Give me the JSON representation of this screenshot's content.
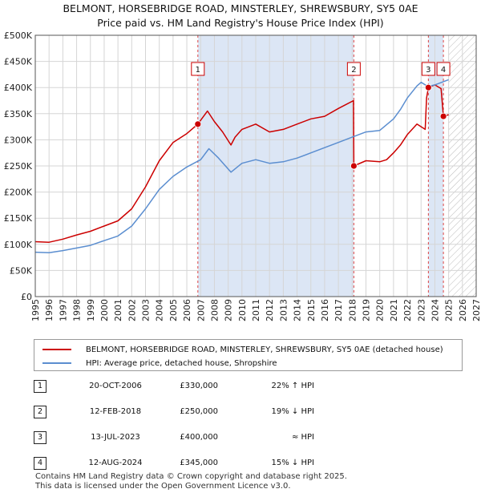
{
  "title_line1": "BELMONT, HORSEBRIDGE ROAD, MINSTERLEY, SHREWSBURY, SY5 0AE",
  "title_line2": "Price paid vs. HM Land Registry's House Price Index (HPI)",
  "chart_data": {
    "type": "line",
    "x_range": [
      1995,
      2027
    ],
    "ylim": [
      0,
      500000
    ],
    "y_ticks": [
      {
        "value": 0,
        "label": "£0"
      },
      {
        "value": 50000,
        "label": "£50K"
      },
      {
        "value": 100000,
        "label": "£100K"
      },
      {
        "value": 150000,
        "label": "£150K"
      },
      {
        "value": 200000,
        "label": "£200K"
      },
      {
        "value": 250000,
        "label": "£250K"
      },
      {
        "value": 300000,
        "label": "£300K"
      },
      {
        "value": 350000,
        "label": "£350K"
      },
      {
        "value": 400000,
        "label": "£400K"
      },
      {
        "value": 450000,
        "label": "£450K"
      },
      {
        "value": 500000,
        "label": "£500K"
      }
    ],
    "x_ticks": [
      "1995",
      "1996",
      "1997",
      "1998",
      "1999",
      "2000",
      "2001",
      "2002",
      "2003",
      "2004",
      "2005",
      "2006",
      "2007",
      "2008",
      "2009",
      "2010",
      "2011",
      "2012",
      "2013",
      "2014",
      "2015",
      "2016",
      "2017",
      "2018",
      "2019",
      "2020",
      "2021",
      "2022",
      "2023",
      "2024",
      "2025",
      "2026",
      "2027"
    ],
    "shaded_periods": [
      [
        2006.8,
        2018.12
      ],
      [
        2023.53,
        2024.62
      ]
    ],
    "forecast_hatch_from": 2025.0,
    "series": [
      {
        "name": "BELMONT, HORSEBRIDGE ROAD, MINSTERLEY, SHREWSBURY, SY5 0AE (detached house)",
        "color": "#cc0000",
        "x": [
          1995,
          1996,
          1997,
          1998,
          1999,
          2000,
          2001,
          2002,
          2003,
          2004,
          2005,
          2006,
          2006.8,
          2007.5,
          2008,
          2008.6,
          2009.2,
          2009.5,
          2010,
          2011,
          2012,
          2013,
          2014,
          2015,
          2016,
          2017,
          2018.1,
          2018.12,
          2019,
          2020,
          2020.5,
          2021,
          2021.5,
          2022,
          2022.7,
          2023.3,
          2023.4,
          2023.53,
          2024,
          2024.45,
          2024.62,
          2025
        ],
        "values": [
          105000,
          104000,
          110000,
          118000,
          125000,
          135000,
          145000,
          168000,
          210000,
          260000,
          295000,
          312000,
          330000,
          355000,
          335000,
          315000,
          290000,
          305000,
          320000,
          330000,
          315000,
          320000,
          330000,
          340000,
          345000,
          360000,
          375000,
          250000,
          260000,
          258000,
          262000,
          275000,
          290000,
          310000,
          330000,
          320000,
          380000,
          400000,
          405000,
          398000,
          345000,
          348000
        ]
      },
      {
        "name": "HPI: Average price, detached house, Shropshire",
        "color": "#5b8ed0",
        "x": [
          1995,
          1996,
          1997,
          1998,
          1999,
          2000,
          2001,
          2002,
          2003,
          2004,
          2005,
          2006,
          2007,
          2007.6,
          2008.3,
          2009.2,
          2010,
          2011,
          2012,
          2013,
          2014,
          2015,
          2016,
          2017,
          2018,
          2019,
          2020,
          2021,
          2021.5,
          2022,
          2022.7,
          2023,
          2023.5,
          2024,
          2024.5,
          2025
        ],
        "values": [
          85000,
          84000,
          88000,
          93000,
          98000,
          107000,
          116000,
          135000,
          168000,
          205000,
          230000,
          248000,
          262000,
          283000,
          265000,
          238000,
          255000,
          262000,
          255000,
          258000,
          265000,
          275000,
          285000,
          295000,
          305000,
          315000,
          318000,
          340000,
          358000,
          380000,
          403000,
          410000,
          402000,
          405000,
          410000,
          415000
        ]
      }
    ],
    "markers": [
      {
        "label": "1",
        "x": 2006.8,
        "value": 330000
      },
      {
        "label": "2",
        "x": 2018.12,
        "value": 250000
      },
      {
        "label": "3",
        "x": 2023.53,
        "value": 400000
      },
      {
        "label": "4",
        "x": 2024.62,
        "value": 345000
      }
    ]
  },
  "legend": {
    "property": "BELMONT, HORSEBRIDGE ROAD, MINSTERLEY, SHREWSBURY, SY5 0AE (detached house)",
    "hpi": "HPI: Average price, detached house, Shropshire"
  },
  "transactions": [
    {
      "num": "1",
      "date": "20-OCT-2006",
      "price": "£330,000",
      "hpi": "22% ↑ HPI"
    },
    {
      "num": "2",
      "date": "12-FEB-2018",
      "price": "£250,000",
      "hpi": "19% ↓ HPI"
    },
    {
      "num": "3",
      "date": "13-JUL-2023",
      "price": "£400,000",
      "hpi": "≈ HPI"
    },
    {
      "num": "4",
      "date": "12-AUG-2024",
      "price": "£345,000",
      "hpi": "15% ↓ HPI"
    }
  ],
  "footer_line1": "Contains HM Land Registry data © Crown copyright and database right 2025.",
  "footer_line2": "This data is licensed under the Open Government Licence v3.0."
}
